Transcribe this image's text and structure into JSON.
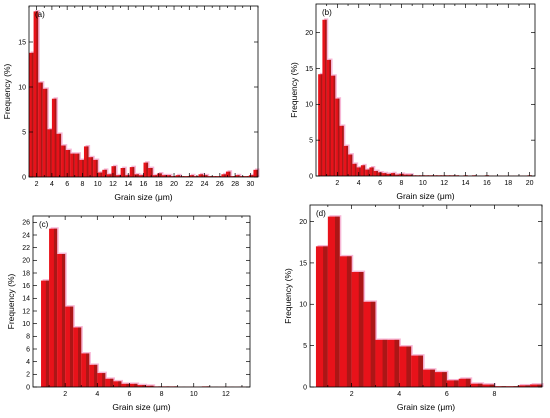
{
  "chart_data": [
    {
      "panel_label": "(a)",
      "type": "bar",
      "xlabel": "Grain size (μm)",
      "ylabel": "Frequency (%)",
      "xlim": [
        1,
        31
      ],
      "ylim": [
        0,
        19
      ],
      "xticks": [
        2,
        4,
        6,
        8,
        10,
        12,
        14,
        16,
        18,
        20,
        22,
        24,
        26,
        28,
        30
      ],
      "yticks": [
        0,
        5,
        10,
        15
      ],
      "bin_width": 0.6,
      "x": [
        1.3,
        1.9,
        2.5,
        3.1,
        3.7,
        4.3,
        4.9,
        5.5,
        6.1,
        6.7,
        7.3,
        7.9,
        8.5,
        9.1,
        9.7,
        10.3,
        10.9,
        11.5,
        12.1,
        12.7,
        13.3,
        13.9,
        14.5,
        15.1,
        15.7,
        16.3,
        16.9,
        17.5,
        18.1,
        18.7,
        19.3,
        19.9,
        20.5,
        21.1,
        21.7,
        22.3,
        22.9,
        23.5,
        24.1,
        24.7,
        25.3,
        25.9,
        26.5,
        27.1,
        27.7,
        28.3,
        28.9,
        29.5,
        30.1,
        30.7
      ],
      "values": [
        13.8,
        18.4,
        10.5,
        9.8,
        5.3,
        8.7,
        4.8,
        3.5,
        3.0,
        2.6,
        2.6,
        1.9,
        3.4,
        2.2,
        1.9,
        0.5,
        0.8,
        0.3,
        1.2,
        0.2,
        1.0,
        0.2,
        1.1,
        0.3,
        0.2,
        1.6,
        1.0,
        0.2,
        0.4,
        0.2,
        0.2,
        0.1,
        0.2,
        0.1,
        0.1,
        0.2,
        0.1,
        0.3,
        0.2,
        0.1,
        0.1,
        0.1,
        0.3,
        0.6,
        0.1,
        0.2,
        0.1,
        0.1,
        0.2,
        0.8
      ]
    },
    {
      "panel_label": "(b)",
      "type": "bar",
      "xlabel": "Grain size (μm)",
      "ylabel": "Frequency (%)",
      "xlim": [
        0,
        20.5
      ],
      "ylim": [
        0,
        24
      ],
      "xticks": [
        2,
        4,
        6,
        8,
        10,
        12,
        14,
        16,
        18,
        20
      ],
      "yticks": [
        0,
        5,
        10,
        15,
        20
      ],
      "bin_width": 0.4,
      "x": [
        0.4,
        0.8,
        1.2,
        1.6,
        2.0,
        2.4,
        2.8,
        3.2,
        3.6,
        4.0,
        4.4,
        4.8,
        5.2,
        5.6,
        6.0,
        6.4,
        6.8,
        7.2,
        7.6,
        8.0,
        8.4,
        8.8,
        9.2,
        9.6,
        10.0,
        10.4,
        10.8,
        11.2,
        11.6,
        12.0,
        12.4,
        12.8,
        13.2,
        13.6,
        14.0,
        14.4,
        14.8,
        15.2,
        15.6,
        16.0,
        16.4,
        16.8,
        17.2,
        17.6,
        18.0,
        18.4,
        18.8,
        19.2,
        19.6,
        20.0
      ],
      "values": [
        14.2,
        21.8,
        16.2,
        14.0,
        10.8,
        7.0,
        4.2,
        3.0,
        1.7,
        1.2,
        1.5,
        0.9,
        1.2,
        0.7,
        0.5,
        0.4,
        0.3,
        0.4,
        0.2,
        0.3,
        0.2,
        0.2,
        0.1,
        0.1,
        0.1,
        0.1,
        0.1,
        0.1,
        0.1,
        0.1,
        0.1,
        0.1,
        0.1,
        0.05,
        0.1,
        0.05,
        0.1,
        0.05,
        0.05,
        0.1,
        0.05,
        0.05,
        0.05,
        0.05,
        0.05,
        0.05,
        0.05,
        0.05,
        0.05,
        0.1
      ]
    },
    {
      "panel_label": "(c)",
      "type": "bar",
      "xlabel": "Grain size (μm)",
      "ylabel": "Frequency (%)",
      "xlim": [
        0,
        13.5
      ],
      "ylim": [
        0,
        27
      ],
      "xticks": [
        2,
        4,
        6,
        8,
        10,
        12
      ],
      "yticks": [
        0,
        2,
        4,
        6,
        8,
        10,
        12,
        14,
        16,
        18,
        20,
        22,
        24,
        26
      ],
      "bin_width": 0.5,
      "x": [
        0.75,
        1.25,
        1.75,
        2.25,
        2.75,
        3.25,
        3.75,
        4.25,
        4.75,
        5.25,
        5.75,
        6.25,
        6.75,
        7.25,
        7.75,
        8.25,
        8.75,
        9.25,
        9.75,
        10.25,
        10.75,
        11.25,
        11.75,
        12.25,
        12.75,
        13.25
      ],
      "values": [
        16.8,
        25.0,
        21.0,
        12.7,
        9.4,
        5.3,
        3.5,
        2.2,
        1.3,
        0.9,
        0.5,
        0.5,
        0.3,
        0.2,
        0.1,
        0.1,
        0.1,
        0.05,
        0.05,
        0.05,
        0.1,
        0.05,
        0.05,
        0.05,
        0.05,
        0.05
      ]
    },
    {
      "panel_label": "(d)",
      "type": "bar",
      "xlabel": "Grain size (μm)",
      "ylabel": "Frequency (%)",
      "xlim": [
        0.25,
        10
      ],
      "ylim": [
        0,
        22
      ],
      "xticks": [
        2,
        4,
        6,
        8
      ],
      "yticks": [
        0,
        5,
        10,
        15,
        20
      ],
      "bin_width": 0.5,
      "x": [
        0.75,
        1.25,
        1.75,
        2.25,
        2.75,
        3.25,
        3.75,
        4.25,
        4.75,
        5.25,
        5.75,
        6.25,
        6.75,
        7.25,
        7.75,
        8.25,
        8.75,
        9.25,
        9.75
      ],
      "values": [
        17.0,
        20.6,
        15.8,
        13.9,
        10.3,
        5.7,
        5.7,
        4.9,
        3.8,
        2.1,
        1.8,
        0.8,
        1.0,
        0.4,
        0.3,
        0.1,
        0.1,
        0.2,
        0.3
      ]
    }
  ],
  "colors": {
    "bar": "#e8121a",
    "shadow": "#7a1a14",
    "halo": "#f7b7d6"
  }
}
